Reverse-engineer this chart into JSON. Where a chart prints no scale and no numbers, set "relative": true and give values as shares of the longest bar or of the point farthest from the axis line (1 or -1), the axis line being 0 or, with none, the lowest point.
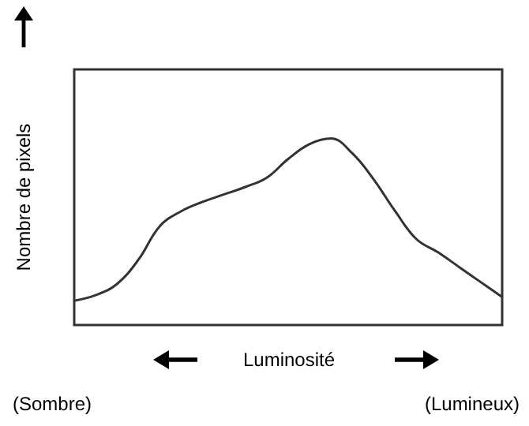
{
  "chart_data": {
    "type": "line",
    "relative": true,
    "xlabel": "Luminosité",
    "ylabel": "Nombre de pixels",
    "annotations": [
      "(Sombre)",
      "(Lumineux)"
    ],
    "categories": [
      null,
      null,
      null,
      null,
      null,
      null,
      null,
      null,
      null,
      null,
      null,
      null,
      null,
      null,
      null,
      null,
      null,
      null,
      null,
      null,
      null
    ],
    "series": [
      {
        "color": "#333333",
        "values": [
          0.13,
          0.16,
          0.22,
          0.35,
          0.53,
          0.61,
          0.66,
          0.7,
          0.74,
          0.79,
          0.89,
          0.97,
          1,
          0.92,
          0.78,
          0.61,
          0.46,
          0.39,
          0.31,
          0.23,
          0.15
        ]
      }
    ],
    "grid": false,
    "marker": "none",
    "line_style": "solid"
  }
}
